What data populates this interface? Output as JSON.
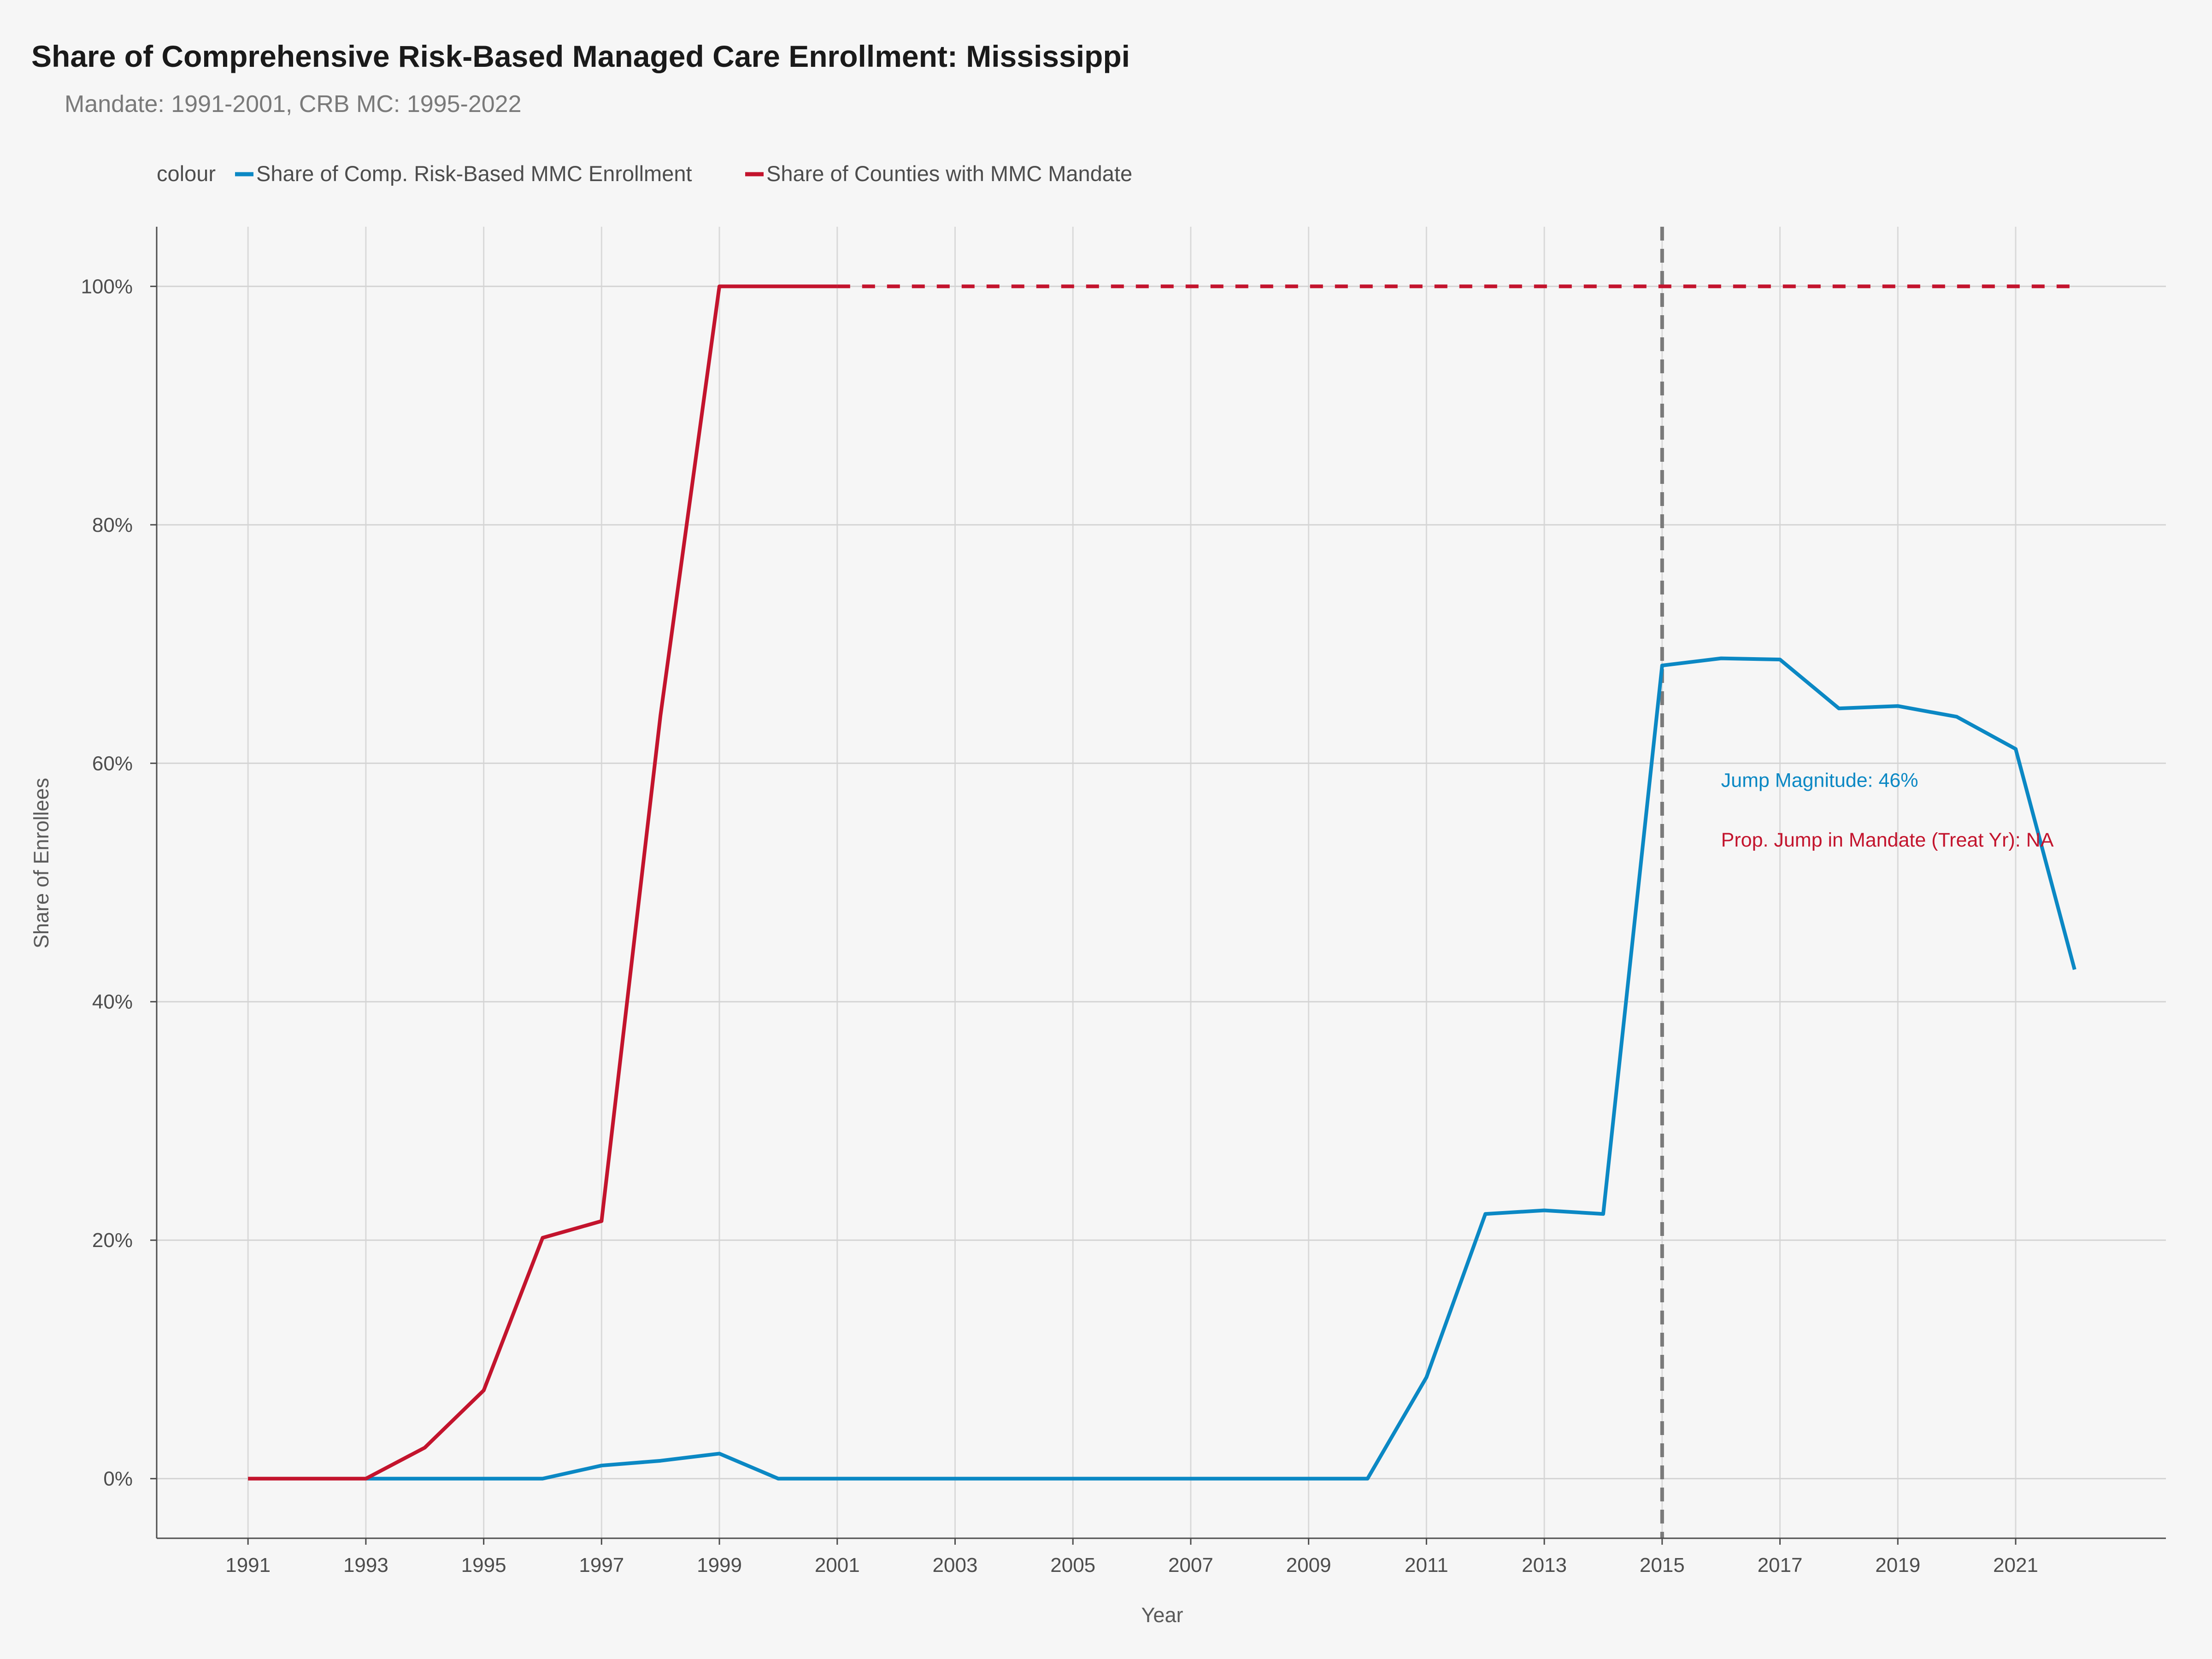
{
  "chart_data": {
    "type": "line",
    "title": "Share of Comprehensive Risk-Based Managed Care Enrollment: Mississippi",
    "subtitle": "Mandate: 1991-2001, CRB MC: 1995-2022",
    "xlabel": "Year",
    "ylabel": "Share of Enrollees",
    "xlim": [
      1989.45,
      2023.55
    ],
    "ylim": [
      -0.05,
      1.05
    ],
    "x_ticks": [
      1991,
      1993,
      1995,
      1997,
      1999,
      2001,
      2003,
      2005,
      2007,
      2009,
      2011,
      2013,
      2015,
      2017,
      2019,
      2021
    ],
    "y_ticks": [
      0,
      0.2,
      0.4,
      0.6,
      0.8,
      1.0
    ],
    "y_tick_labels": [
      "0%",
      "20%",
      "40%",
      "60%",
      "80%",
      "100%"
    ],
    "grid": true,
    "legend": {
      "title": "colour",
      "position": "top-left"
    },
    "series": [
      {
        "name": "Share of Comp. Risk-Based MMC Enrollment",
        "color": "#0b88c4",
        "x": [
          1993,
          1994,
          1995,
          1996,
          1997,
          1998,
          1999,
          2000,
          2001,
          2002,
          2003,
          2004,
          2005,
          2006,
          2007,
          2008,
          2009,
          2010,
          2011,
          2012,
          2013,
          2014,
          2015,
          2016,
          2017,
          2018,
          2019,
          2020,
          2021,
          2022
        ],
        "y": [
          0,
          0,
          0,
          0,
          0.011,
          0.015,
          0.021,
          0,
          0,
          0,
          0,
          0,
          0,
          0,
          0,
          0,
          0,
          0,
          0.085,
          0.222,
          0.225,
          0.222,
          0.682,
          0.688,
          0.687,
          0.646,
          0.648,
          0.639,
          0.612,
          0.427
        ]
      },
      {
        "name": "Share of Counties with MMC Mandate",
        "color": "#c3142d",
        "x": [
          1991,
          1992,
          1993,
          1994,
          1995,
          1996,
          1997,
          1998,
          1999,
          2000,
          2001
        ],
        "y": [
          0,
          0,
          0,
          0.026,
          0.074,
          0.202,
          0.216,
          0.64,
          1.0,
          1.0,
          1.0
        ],
        "dashed_extension": {
          "x": [
            2001,
            2022
          ],
          "y": [
            1.0,
            1.0
          ]
        }
      }
    ],
    "reference_line": {
      "x": 2015,
      "style": "dashed",
      "color": "#7a7a7a"
    },
    "annotations": [
      {
        "text": "Jump Magnitude: 46%",
        "x": 2016,
        "y": 0.586,
        "color": "#0b88c4"
      },
      {
        "text": "Prop. Jump in Mandate (Treat Yr): NA",
        "x": 2016,
        "y": 0.536,
        "color": "#c3142d"
      }
    ]
  }
}
